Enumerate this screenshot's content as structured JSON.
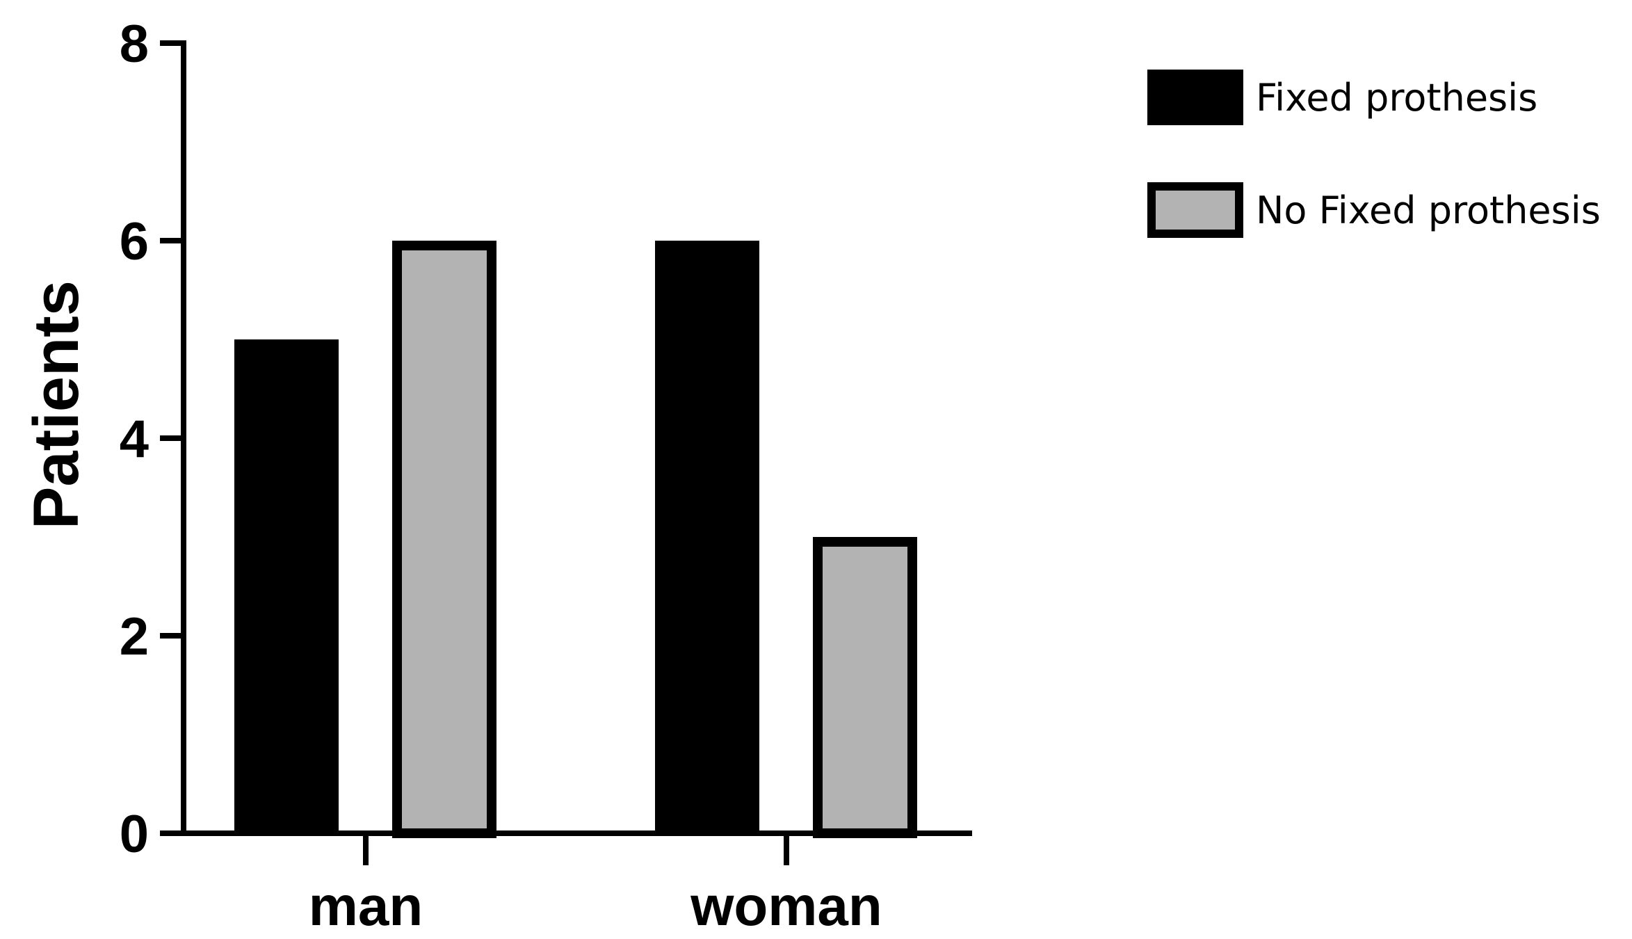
{
  "chart_data": {
    "type": "bar",
    "categories": [
      "man",
      "woman"
    ],
    "series": [
      {
        "name": "Fixed prothesis",
        "values": [
          5,
          6
        ],
        "fill": "#000000",
        "stroke": "#000000"
      },
      {
        "name": "No Fixed prothesis",
        "values": [
          6,
          3
        ],
        "fill": "#b3b3b3",
        "stroke": "#000000"
      }
    ],
    "xlabel": "",
    "ylabel": "Patients",
    "ylim": [
      0,
      8
    ],
    "yticks": [
      0,
      2,
      4,
      6,
      8
    ],
    "grid": false,
    "legend_position": "top-right"
  }
}
